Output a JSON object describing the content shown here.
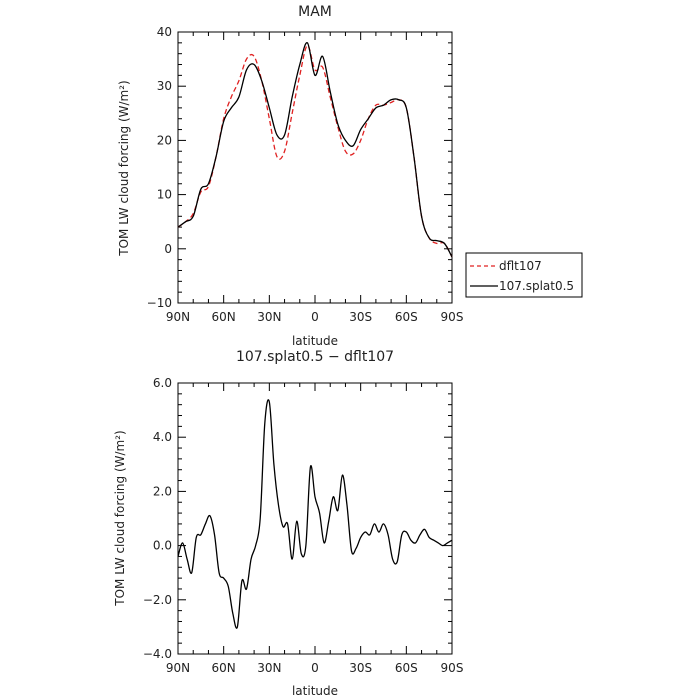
{
  "chart_data": [
    {
      "type": "line",
      "title": "MAM",
      "xlabel": "latitude",
      "ylabel": "TOM LW cloud forcing (W/m²)",
      "xlim": [
        90,
        -90
      ],
      "ylim": [
        -10,
        40
      ],
      "x_ticks": [
        90,
        60,
        30,
        0,
        -30,
        -60,
        -90
      ],
      "x_tick_labels": [
        "90N",
        "60N",
        "30N",
        "0",
        "30S",
        "60S",
        "90S"
      ],
      "y_ticks": [
        -10,
        0,
        10,
        20,
        30,
        40
      ],
      "y_tick_labels": [
        "−10",
        "0",
        "10",
        "20",
        "30",
        "40"
      ],
      "legend_position": "outside-right",
      "grid": false,
      "series": [
        {
          "name": "dflt107",
          "color": "#e02020",
          "dash": "dashed",
          "x": [
            90,
            85,
            80,
            75,
            70,
            65,
            60,
            55,
            50,
            45,
            40,
            35,
            30,
            25,
            20,
            15,
            10,
            5,
            0,
            -5,
            -10,
            -15,
            -20,
            -25,
            -30,
            -35,
            -40,
            -45,
            -50,
            -55,
            -60,
            -65,
            -70,
            -75,
            -80,
            -85,
            -90
          ],
          "y": [
            4,
            5,
            6.5,
            10.5,
            11.5,
            17,
            24,
            28,
            31,
            35,
            35.5,
            31,
            24,
            17,
            18,
            25,
            32,
            37.5,
            33,
            33.5,
            28,
            22.5,
            18,
            17.5,
            20,
            24,
            26.5,
            26.5,
            27,
            27.5,
            26,
            17,
            6,
            2,
            1,
            1,
            -1.5
          ]
        },
        {
          "name": "107.splat0.5",
          "color": "#000000",
          "dash": "solid",
          "x": [
            90,
            85,
            80,
            75,
            70,
            65,
            60,
            55,
            50,
            45,
            40,
            35,
            30,
            25,
            20,
            15,
            10,
            5,
            0,
            -5,
            -10,
            -15,
            -20,
            -25,
            -30,
            -35,
            -40,
            -45,
            -50,
            -55,
            -60,
            -65,
            -70,
            -75,
            -80,
            -85,
            -90
          ],
          "y": [
            4,
            5,
            6,
            11,
            12,
            17,
            23.5,
            26,
            28,
            33,
            34,
            31,
            26,
            21,
            21,
            28,
            34,
            38,
            32,
            35.5,
            29,
            23,
            20,
            19,
            22,
            24,
            26,
            26.5,
            27.5,
            27.5,
            26,
            17,
            6,
            2,
            1.5,
            1,
            -1.5
          ]
        }
      ]
    },
    {
      "type": "line",
      "title": "107.splat0.5 − dflt107",
      "xlabel": "latitude",
      "ylabel": "TOM LW cloud forcing (W/m²)",
      "xlim": [
        90,
        -90
      ],
      "ylim": [
        -4,
        6
      ],
      "x_ticks": [
        90,
        60,
        30,
        0,
        -30,
        -60,
        -90
      ],
      "x_tick_labels": [
        "90N",
        "60N",
        "30N",
        "0",
        "30S",
        "60S",
        "90S"
      ],
      "y_ticks": [
        -4,
        -2,
        0,
        2,
        4,
        6
      ],
      "y_tick_labels": [
        "−4.0",
        "−2.0",
        "0.0",
        "2.0",
        "4.0",
        "6.0"
      ],
      "grid": false,
      "series": [
        {
          "color": "#000000",
          "dash": "solid",
          "x": [
            90,
            87,
            84,
            81,
            78,
            75,
            72,
            69,
            66,
            63,
            60,
            57,
            54,
            51,
            48,
            45,
            42,
            39,
            36,
            33,
            30,
            27,
            24,
            21,
            18,
            15,
            12,
            9,
            6,
            3,
            0,
            -3,
            -6,
            -9,
            -12,
            -15,
            -18,
            -21,
            -24,
            -27,
            -30,
            -33,
            -36,
            -39,
            -42,
            -45,
            -48,
            -51,
            -54,
            -57,
            -60,
            -63,
            -66,
            -69,
            -72,
            -75,
            -78,
            -81,
            -84,
            -87,
            -90
          ],
          "y": [
            -0.4,
            0.1,
            -0.5,
            -1.0,
            0.3,
            0.4,
            0.8,
            1.1,
            0.4,
            -1.0,
            -1.2,
            -1.5,
            -2.5,
            -3.0,
            -1.3,
            -1.6,
            -0.5,
            0.0,
            1.0,
            4.5,
            5.3,
            3.0,
            1.5,
            0.7,
            0.8,
            -0.5,
            0.9,
            -0.3,
            0.0,
            2.9,
            1.8,
            1.2,
            0.1,
            0.9,
            1.8,
            1.3,
            2.6,
            1.5,
            -0.2,
            -0.1,
            0.3,
            0.5,
            0.4,
            0.8,
            0.5,
            0.8,
            0.4,
            -0.5,
            -0.6,
            0.4,
            0.5,
            0.2,
            0.1,
            0.4,
            0.6,
            0.3,
            0.2,
            0.1,
            0.0,
            0.1,
            0.2
          ]
        }
      ]
    }
  ]
}
